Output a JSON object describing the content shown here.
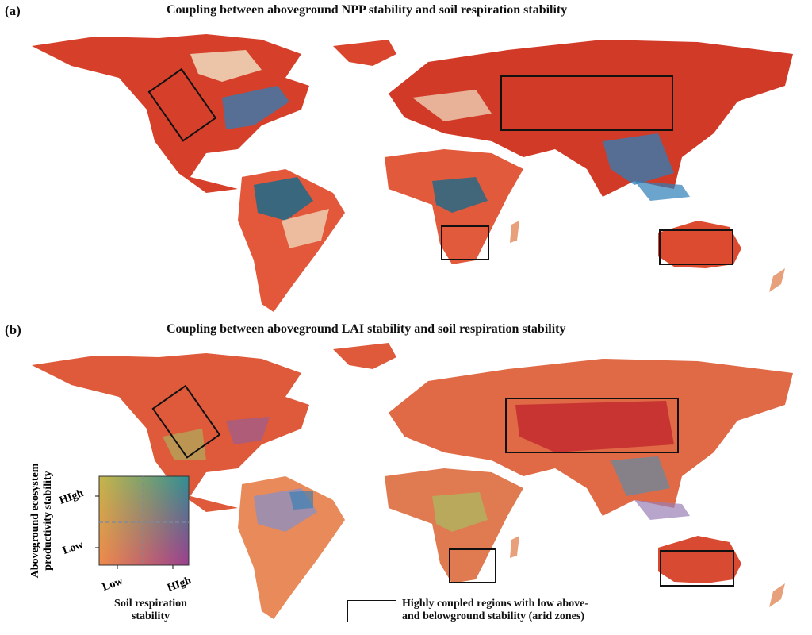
{
  "panel_a": {
    "label": "(a)",
    "title": "Coupling between aboveground NPP stability and soil respiration stability"
  },
  "panel_b": {
    "label": "(b)",
    "title": "Coupling between aboveground LAI stability and soil respiration stability"
  },
  "colors": {
    "red": "#d7301f",
    "dark_red": "#b2182b",
    "orange": "#f4a582",
    "cream": "#f1e6c8",
    "teal": "#2c7fb8",
    "dark_teal": "#1b6a8a",
    "purple": "#8e5ea2",
    "green": "#a6bd63"
  },
  "bivariate_legend": {
    "y_title_line1": "Aboveground ecosystem",
    "y_title_line2": "productivity stability",
    "y_high": "HIgh",
    "y_low": "Low",
    "x_low": "Low",
    "x_high": "HIgh",
    "x_title_line1": "Soil respiration",
    "x_title_line2": "stability"
  },
  "box_legend": {
    "line1": "Highly coupled regions with low above-",
    "line2": "and belowground stability (arid zones)"
  }
}
